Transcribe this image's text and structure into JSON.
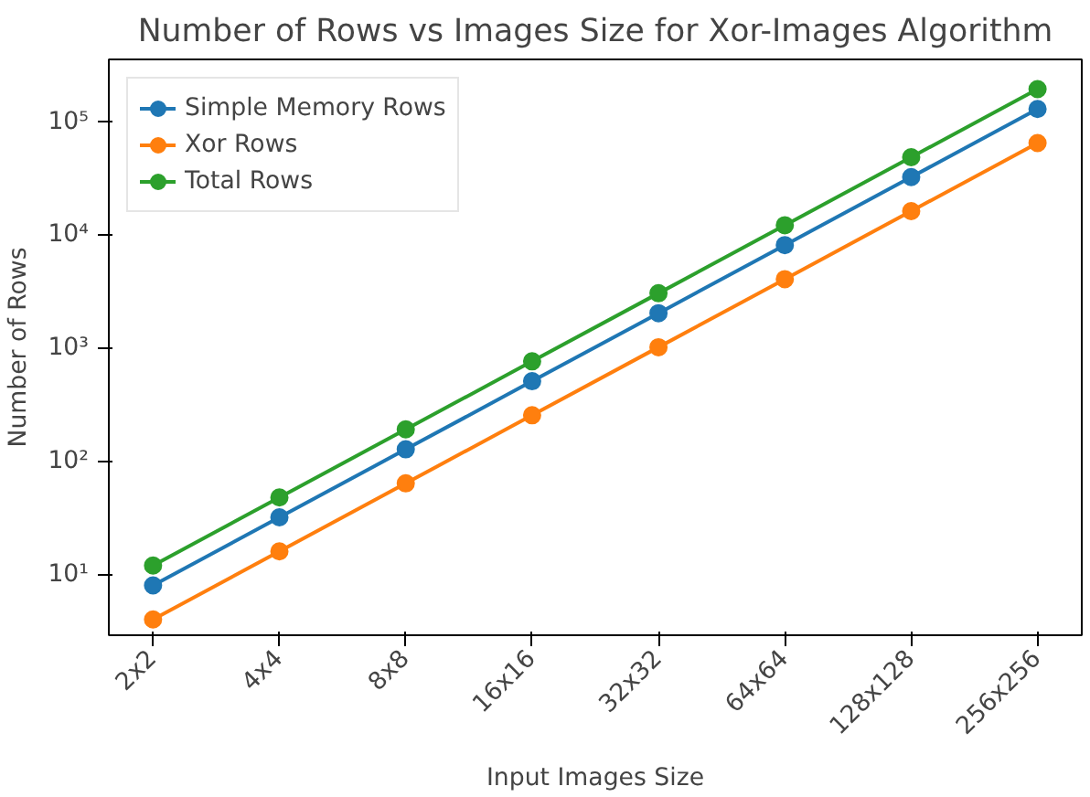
{
  "chart_data": {
    "type": "line",
    "title": "Number of Rows vs Images Size for Xor-Images Algorithm",
    "xlabel": "Input Images Size",
    "ylabel": "Number of Rows",
    "categories": [
      "2x2",
      "4x4",
      "8x8",
      "16x16",
      "32x32",
      "64x64",
      "128x128",
      "256x256"
    ],
    "series": [
      {
        "name": "Simple Memory Rows",
        "color": "#1f77b4",
        "values": [
          8,
          32,
          128,
          512,
          2048,
          8192,
          32768,
          131072
        ]
      },
      {
        "name": "Xor Rows",
        "color": "#ff7f0e",
        "values": [
          4,
          16,
          64,
          256,
          1024,
          4096,
          16384,
          65536
        ]
      },
      {
        "name": "Total Rows",
        "color": "#2ca02c",
        "values": [
          12,
          48,
          192,
          768,
          3072,
          12288,
          49152,
          196608
        ]
      }
    ],
    "log": true,
    "ylim": [
      2.9,
      360000
    ],
    "yticks": [
      {
        "value": 10,
        "label": "10¹"
      },
      {
        "value": 100,
        "label": "10²"
      },
      {
        "value": 1000,
        "label": "10³"
      },
      {
        "value": 10000,
        "label": "10⁴"
      },
      {
        "value": 100000,
        "label": "10⁵"
      }
    ],
    "marker": "circle",
    "line_style": "solid",
    "legend": "top left",
    "grid": false
  }
}
